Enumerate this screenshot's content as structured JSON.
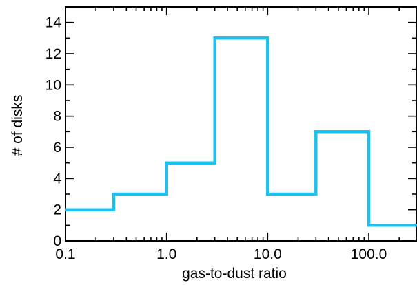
{
  "chart_data": {
    "type": "step",
    "title": "",
    "xlabel": "gas-to-dust ratio",
    "ylabel": "# of disks",
    "x_scale": "log",
    "xlim": [
      0.1,
      300
    ],
    "ylim": [
      0,
      15
    ],
    "x_ticks": [
      0.1,
      1.0,
      10.0,
      100.0
    ],
    "x_tick_labels": [
      "0.1",
      "1.0",
      "10.0",
      "100.0"
    ],
    "y_ticks": [
      0,
      2,
      4,
      6,
      8,
      10,
      12,
      14
    ],
    "y_tick_labels": [
      "0",
      "2",
      "4",
      "6",
      "8",
      "10",
      "12",
      "14"
    ],
    "grid": false,
    "series": [
      {
        "color": "#1ec0ef",
        "bin_edges": [
          0.1,
          0.3,
          1.0,
          3.0,
          10.0,
          30.0,
          100.0,
          300.0
        ],
        "counts": [
          2,
          3,
          5,
          13,
          3,
          7,
          1
        ]
      }
    ]
  }
}
